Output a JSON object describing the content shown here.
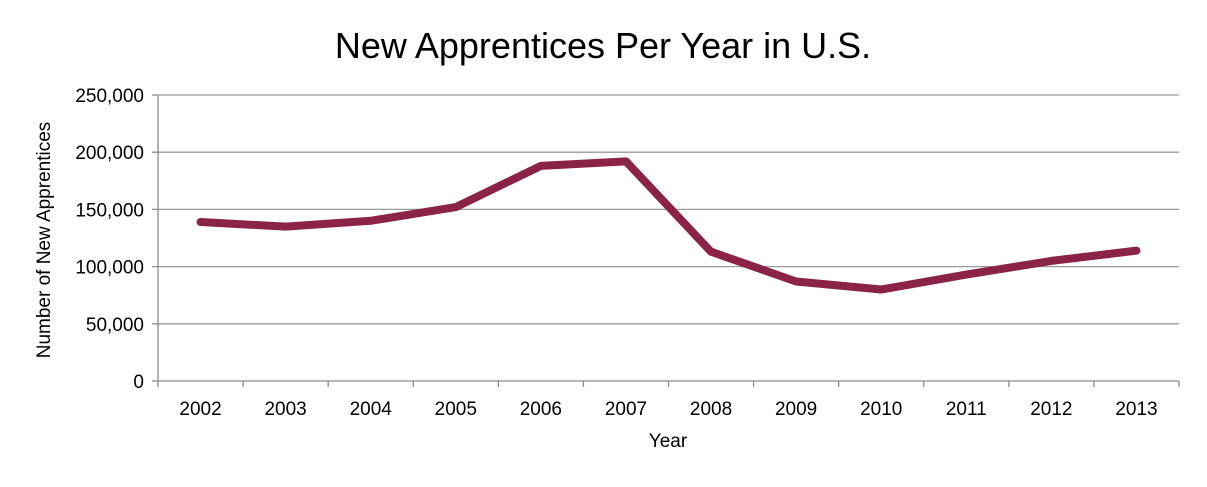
{
  "chart_data": {
    "type": "line",
    "title": "New Apprentices Per Year in U.S.",
    "xlabel": "Year",
    "ylabel": "Number of New Apprentices",
    "categories": [
      "2002",
      "2003",
      "2004",
      "2005",
      "2006",
      "2007",
      "2008",
      "2009",
      "2010",
      "2011",
      "2012",
      "2013"
    ],
    "series": [
      {
        "values": [
          139000,
          135000,
          140000,
          152000,
          188000,
          192000,
          113000,
          87000,
          80000,
          93000,
          105000,
          114000
        ]
      }
    ],
    "ylim": [
      0,
      250000
    ],
    "y_ticks": [
      0,
      50000,
      100000,
      150000,
      200000,
      250000
    ],
    "y_tick_labels": [
      "0",
      "50,000",
      "100,000",
      "150,000",
      "200,000",
      "250,000"
    ],
    "grid": true,
    "legend": "none",
    "colors": {
      "line": "#8B2349",
      "grid": "#9a9a9a",
      "axis": "#8a8a8a"
    }
  }
}
